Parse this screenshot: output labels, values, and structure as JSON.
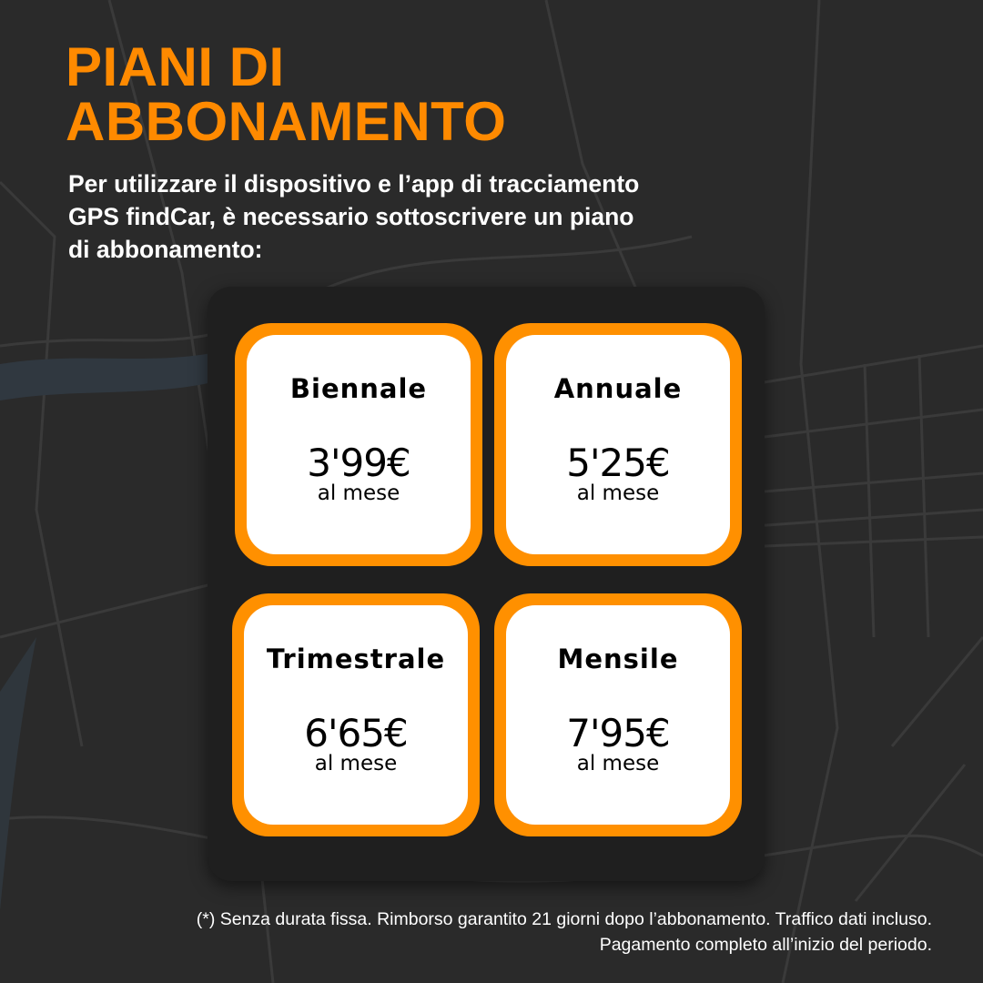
{
  "title": {
    "line1": "PIANI DI",
    "line2": "ABBONAMENTO"
  },
  "subtitle": "Per utilizzare il dispositivo e l’app di tracciamento GPS findCar, è necessario sottoscrivere un piano di abbonamento:",
  "plans": [
    {
      "name": "Biennale",
      "price": "3'99€",
      "period": "al mese"
    },
    {
      "name": "Annuale",
      "price": "5'25€",
      "period": "al mese"
    },
    {
      "name": "Trimestrale",
      "price": "6'65€",
      "period": "al mese"
    },
    {
      "name": "Mensile",
      "price": "7'95€",
      "period": "al mese"
    }
  ],
  "footnote": "(*) Senza durata fissa. Rimborso garantito 21 giorni dopo l’abbonamento. Traffico dati incluso. Pagamento completo all’inizio del periodo.",
  "colors": {
    "accent": "#ff9000",
    "background": "#2a2a2a",
    "panel": "#1f1f1f"
  }
}
